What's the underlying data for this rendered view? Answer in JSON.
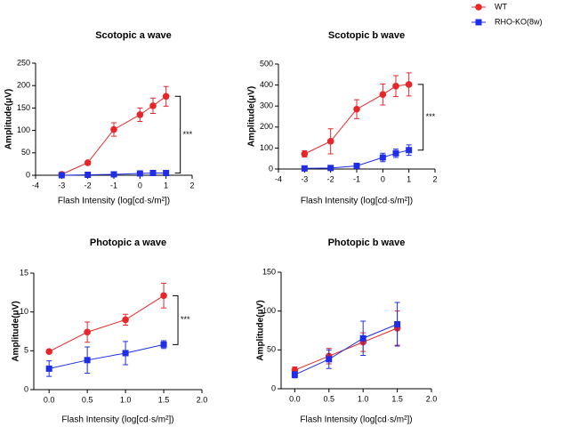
{
  "legend": {
    "series": [
      {
        "name": "WT",
        "color": "#e8262a",
        "marker": "circle"
      },
      {
        "name": "RHO-KO(8w)",
        "color": "#1f2de8",
        "marker": "square"
      }
    ]
  },
  "chart_data": [
    {
      "type": "line",
      "title": "Scotopic a wave",
      "x_label": "Flash Intensity (log[cd·s/m²])",
      "y_label": "Amplitude(μV)",
      "annotation": "***",
      "x": [
        -3,
        -2,
        -1,
        0,
        0.5,
        1
      ],
      "xlim": [
        -4,
        2
      ],
      "xticks": [
        -4,
        -3,
        -2,
        -1,
        0,
        1,
        2
      ],
      "ylim": [
        0,
        250
      ],
      "yticks": [
        0,
        50,
        100,
        150,
        200,
        250
      ],
      "series": [
        {
          "values": [
            2,
            28,
            102,
            135,
            155,
            176
          ],
          "errors": [
            1,
            3,
            15,
            15,
            17,
            22
          ]
        },
        {
          "values": [
            0,
            1,
            2,
            4,
            5,
            5
          ],
          "errors": [
            1,
            1,
            1,
            1,
            1,
            1
          ]
        }
      ]
    },
    {
      "type": "line",
      "title": "Scotopic b wave",
      "x_label": "Flash Intensity (log[cd·s/m²])",
      "y_label": "Amplitude(μV)",
      "annotation": "***",
      "x": [
        -3,
        -2,
        -1,
        0,
        0.5,
        1
      ],
      "xlim": [
        -4,
        2
      ],
      "xticks": [
        -4,
        -3,
        -2,
        -1,
        0,
        1,
        2
      ],
      "ylim": [
        0,
        500
      ],
      "yticks": [
        0,
        100,
        200,
        300,
        400,
        500
      ],
      "series": [
        {
          "values": [
            72,
            132,
            285,
            355,
            395,
            403
          ],
          "errors": [
            15,
            60,
            45,
            50,
            50,
            55
          ]
        },
        {
          "values": [
            3,
            5,
            15,
            55,
            75,
            90
          ],
          "errors": [
            2,
            2,
            5,
            20,
            20,
            25
          ]
        }
      ]
    },
    {
      "type": "line",
      "title": "Photopic a wave",
      "x_label": "Flash Intensity (log[cd·s/m²])",
      "y_label": "Amplitude(μV)",
      "annotation": "***",
      "x": [
        0,
        0.5,
        1,
        1.5
      ],
      "xlim": [
        -0.2,
        2
      ],
      "xticks": [
        {
          "value": 0,
          "label": "0.0"
        },
        0.5,
        {
          "value": 1,
          "label": "1.0"
        },
        1.5,
        {
          "value": 2,
          "label": "2.0"
        }
      ],
      "ylim": [
        0,
        15
      ],
      "yticks": [
        0,
        5,
        10,
        15
      ],
      "series": [
        {
          "values": [
            4.9,
            7.4,
            9.0,
            12.1
          ],
          "errors": [
            0.2,
            1.3,
            0.7,
            1.6
          ]
        },
        {
          "values": [
            2.7,
            3.8,
            4.7,
            5.8
          ],
          "errors": [
            1.0,
            1.7,
            1.5,
            0.5
          ]
        }
      ]
    },
    {
      "type": "line",
      "title": "Photopic b wave",
      "x_label": "Flash Intensity (log[cd·s/m²])",
      "y_label": "Amplitude(μV)",
      "x": [
        0,
        0.5,
        1,
        1.5
      ],
      "xlim": [
        -0.2,
        2
      ],
      "xticks": [
        {
          "value": 0,
          "label": "0.0"
        },
        0.5,
        {
          "value": 1,
          "label": "1.0"
        },
        1.5,
        {
          "value": 2,
          "label": "2.0"
        }
      ],
      "ylim": [
        0,
        150
      ],
      "yticks": [
        0,
        50,
        100,
        150
      ],
      "series": [
        {
          "values": [
            24,
            42,
            60,
            78
          ],
          "errors": [
            4,
            10,
            12,
            22
          ]
        },
        {
          "values": [
            18,
            38,
            65,
            83
          ],
          "errors": [
            4,
            12,
            22,
            28
          ]
        }
      ]
    }
  ]
}
